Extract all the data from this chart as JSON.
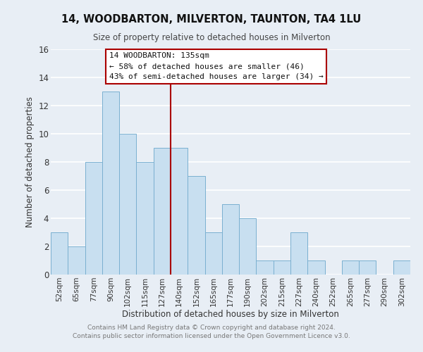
{
  "title": "14, WOODBARTON, MILVERTON, TAUNTON, TA4 1LU",
  "subtitle": "Size of property relative to detached houses in Milverton",
  "xlabel": "Distribution of detached houses by size in Milverton",
  "ylabel": "Number of detached properties",
  "bin_labels": [
    "52sqm",
    "65sqm",
    "77sqm",
    "90sqm",
    "102sqm",
    "115sqm",
    "127sqm",
    "140sqm",
    "152sqm",
    "165sqm",
    "177sqm",
    "190sqm",
    "202sqm",
    "215sqm",
    "227sqm",
    "240sqm",
    "252sqm",
    "265sqm",
    "277sqm",
    "290sqm",
    "302sqm"
  ],
  "bar_values": [
    3,
    2,
    8,
    13,
    10,
    8,
    9,
    9,
    7,
    3,
    5,
    4,
    1,
    1,
    3,
    1,
    0,
    1,
    1,
    0,
    1
  ],
  "bar_color": "#c8dff0",
  "bar_edge_color": "#7ab0d0",
  "highlight_line_color": "#aa0000",
  "annotation_title": "14 WOODBARTON: 135sqm",
  "annotation_line1": "← 58% of detached houses are smaller (46)",
  "annotation_line2": "43% of semi-detached houses are larger (34) →",
  "annotation_box_facecolor": "#ffffff",
  "annotation_box_edgecolor": "#aa0000",
  "ylim": [
    0,
    16
  ],
  "yticks": [
    0,
    2,
    4,
    6,
    8,
    10,
    12,
    14,
    16
  ],
  "footer_line1": "Contains HM Land Registry data © Crown copyright and database right 2024.",
  "footer_line2": "Contains public sector information licensed under the Open Government Licence v3.0.",
  "background_color": "#e8eef5",
  "grid_color": "#ffffff",
  "title_fontsize": 10.5,
  "subtitle_fontsize": 8.5,
  "axis_label_fontsize": 8.5,
  "tick_fontsize": 7.5,
  "footer_fontsize": 6.5,
  "annotation_fontsize": 8.0
}
